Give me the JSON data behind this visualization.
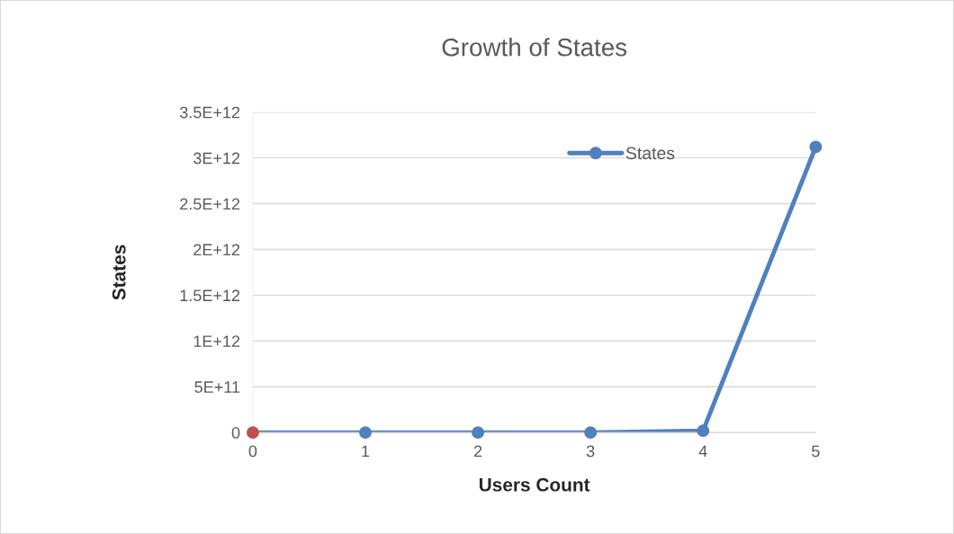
{
  "chart_data": {
    "type": "line",
    "title": "Growth of States",
    "xlabel": "Users Count",
    "ylabel": "States",
    "categories": [
      "0",
      "1",
      "2",
      "3",
      "4",
      "5"
    ],
    "series": [
      {
        "name": "States",
        "color": "#4f81bd",
        "colors": [
          "#c0504d",
          "#4f81bd",
          "#4f81bd",
          "#4f81bd",
          "#4f81bd",
          "#4f81bd"
        ],
        "values": [
          0,
          0,
          0,
          0,
          20000000000.0,
          3120000000000.0
        ]
      }
    ],
    "ylim": [
      0,
      3500000000000.0
    ],
    "yticks": [
      {
        "value": 0,
        "label": "0"
      },
      {
        "value": 500000000000.0,
        "label": "5E+11"
      },
      {
        "value": 1000000000000.0,
        "label": "1E+12"
      },
      {
        "value": 1500000000000.0,
        "label": "1.5E+12"
      },
      {
        "value": 2000000000000.0,
        "label": "2E+12"
      },
      {
        "value": 2500000000000.0,
        "label": "2.5E+12"
      },
      {
        "value": 3000000000000.0,
        "label": "3E+12"
      },
      {
        "value": 3500000000000.0,
        "label": "3.5E+12"
      }
    ],
    "grid": "y",
    "legend": "top right",
    "marker": "circle",
    "line_style": "solid"
  }
}
